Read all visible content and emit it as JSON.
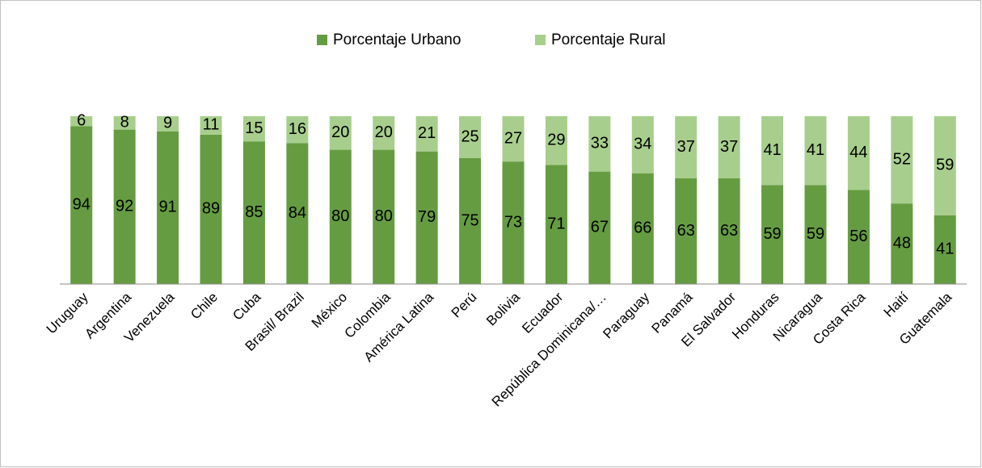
{
  "chart_data": {
    "type": "stacked_bar",
    "categories": [
      "Uruguay",
      "Argentina",
      "Venezuela",
      "Chile",
      "Cuba",
      "Brasil/ Brazil",
      "México",
      "Colombia",
      "América Latina",
      "Perú",
      "Bolivia",
      "Ecuador",
      "República Dominicana/…",
      "Paraguay",
      "Panamá",
      "El Salvador",
      "Honduras",
      "Nicaragua",
      "Costa Rica",
      "Haití",
      "Guatemala"
    ],
    "series": [
      {
        "name": "Porcentaje Urbano",
        "color": "#659c41",
        "values": [
          94,
          92,
          91,
          89,
          85,
          84,
          80,
          80,
          79,
          75,
          73,
          71,
          67,
          66,
          63,
          63,
          59,
          59,
          56,
          48,
          41
        ]
      },
      {
        "name": "Porcentaje Rural",
        "color": "#a8ce8d",
        "values": [
          6,
          8,
          9,
          11,
          15,
          16,
          20,
          20,
          21,
          25,
          27,
          29,
          33,
          34,
          37,
          37,
          41,
          41,
          44,
          52,
          59
        ]
      }
    ],
    "legend": "top"
  }
}
